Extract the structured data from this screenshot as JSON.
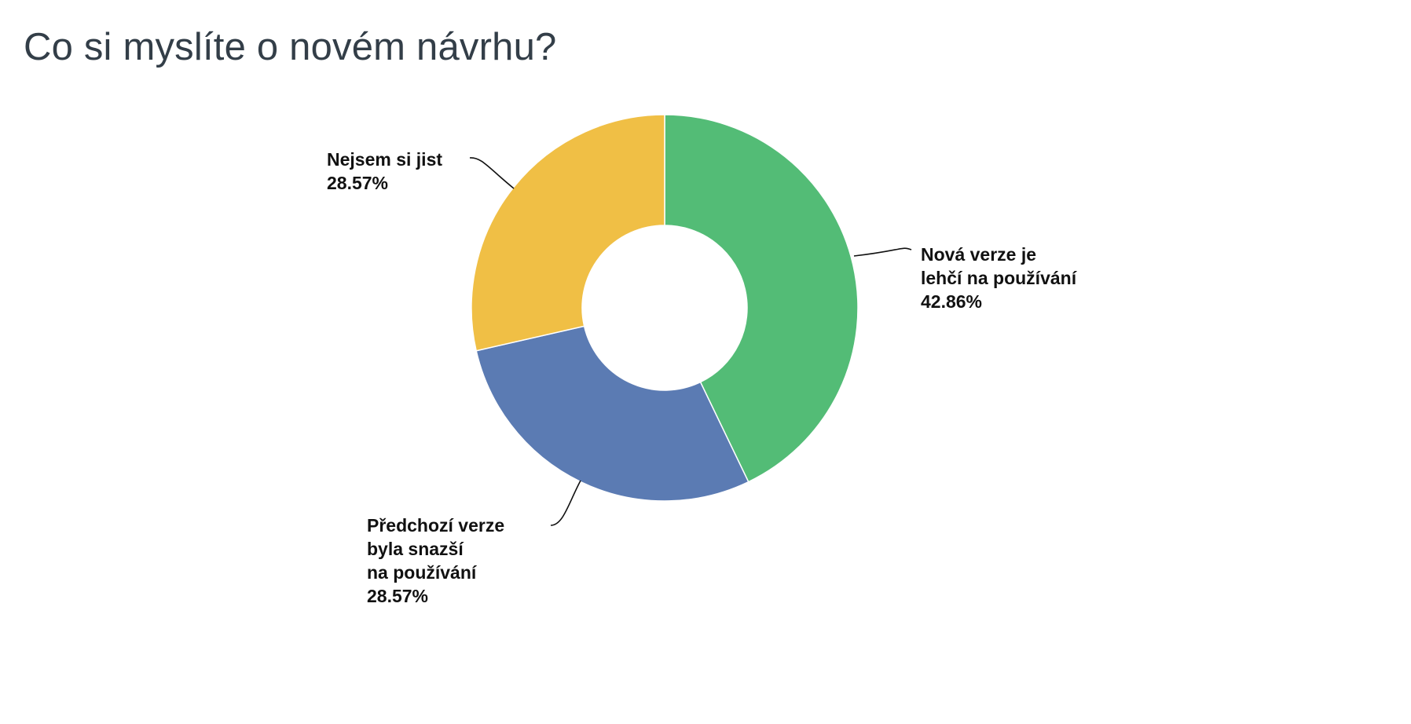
{
  "title": "Co si myslíte o novém návrhu?",
  "chart_data": {
    "type": "pie",
    "variant": "donut",
    "title": "Co si myslíte o novém návrhu?",
    "slices": [
      {
        "label_lines": [
          "Nová verze je",
          "lehčí na používání"
        ],
        "value": 42.86,
        "value_label": "42.86%",
        "color": "#53bc76"
      },
      {
        "label_lines": [
          "Předchozí verze",
          "byla snazší",
          "na používání"
        ],
        "value": 28.57,
        "value_label": "28.57%",
        "color": "#5b7bb3"
      },
      {
        "label_lines": [
          "Nejsem si jist"
        ],
        "value": 28.57,
        "value_label": "28.57%",
        "color": "#f0bf45"
      }
    ],
    "start_angle_deg": 0,
    "direction": "clockwise"
  }
}
